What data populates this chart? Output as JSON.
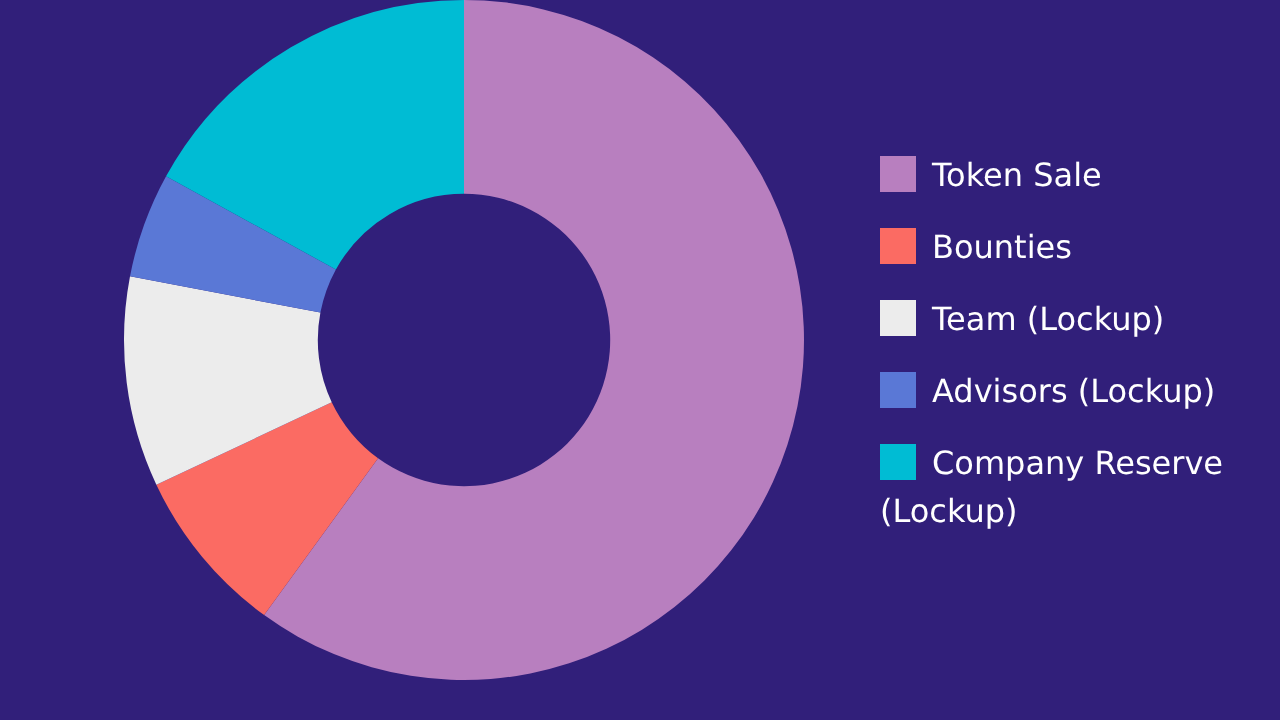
{
  "chart_data": {
    "type": "donut",
    "categories": [
      "Token Sale",
      "Bounties",
      "Team (Lockup)",
      "Advisors (Lockup)",
      "Company Reserve (Lockup)"
    ],
    "values": [
      60,
      8,
      10,
      5,
      17
    ],
    "colors": [
      "#b87fbf",
      "#fb6b63",
      "#ececec",
      "#5a78d6",
      "#00bcd4"
    ],
    "legend": "right"
  }
}
